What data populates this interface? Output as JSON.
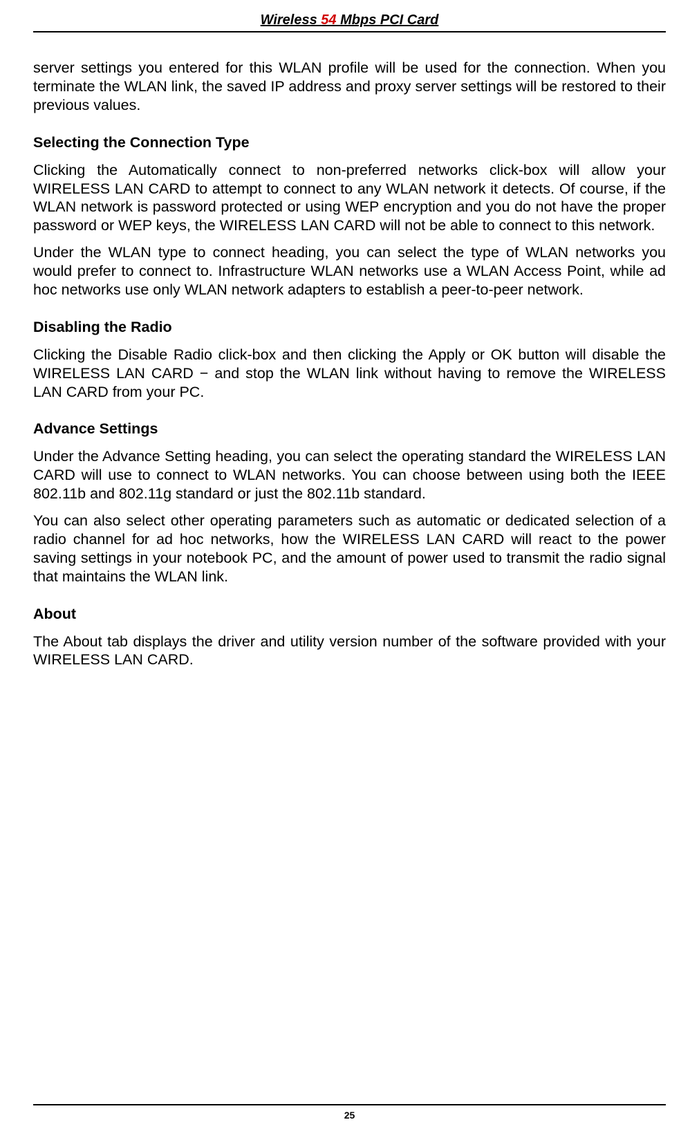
{
  "header": {
    "title_prefix": "Wireless ",
    "title_red": "54",
    "title_suffix": " Mbps PCI Card"
  },
  "paragraphs": {
    "intro": "server settings you entered for this WLAN profile will be used for the connection.  When you terminate the WLAN link, the saved IP address and proxy server settings will be restored to their previous values.",
    "connectionType_heading": "Selecting the Connection Type",
    "connectionType_p1": "Clicking the Automatically connect to non-preferred networks click-box will allow your WIRELESS LAN CARD to attempt to connect to any WLAN network it detects.  Of course, if the WLAN network is password protected or using WEP encryption and you do not have the proper password or WEP keys, the WIRELESS LAN CARD will not be able to connect to this network.",
    "connectionType_p2": "Under the WLAN type to connect heading, you can select the type of WLAN networks you would prefer to connect to.  Infrastructure WLAN networks use a WLAN Access Point, while ad hoc networks use only WLAN network adapters to establish a peer-to-peer network.",
    "disablingRadio_heading": "Disabling the Radio",
    "disablingRadio_p1": "Clicking the Disable Radio click-box and then clicking the Apply or OK button will disable the WIRELESS LAN CARD − and stop the WLAN link without having to remove the WIRELESS LAN CARD from your PC.",
    "advanceSettings_heading": "Advance Settings",
    "advanceSettings_p1": "Under the Advance Setting heading, you can select the operating standard the WIRELESS LAN CARD will use to connect to WLAN networks.  You can choose between using both the IEEE 802.11b and 802.11g standard or just the 802.11b standard.",
    "advanceSettings_p2": "You can also select other operating parameters such as automatic or dedicated selection of a radio channel for ad hoc networks, how the WIRELESS LAN CARD will react to the power saving settings in your notebook PC, and the amount of power used to transmit the radio signal that maintains the WLAN link.",
    "about_heading": "About",
    "about_p1": "The About tab displays the driver and utility version number of the software provided with your WIRELESS LAN CARD."
  },
  "footer": {
    "page_number": "25"
  },
  "colors": {
    "text": "#000000",
    "red": "#d00000",
    "background": "#ffffff",
    "line": "#000000"
  },
  "typography": {
    "body_fontsize": 21.5,
    "heading_fontsize": 21.5,
    "header_title_fontsize": 20,
    "page_number_fontsize": 14,
    "font_family": "Arial"
  }
}
